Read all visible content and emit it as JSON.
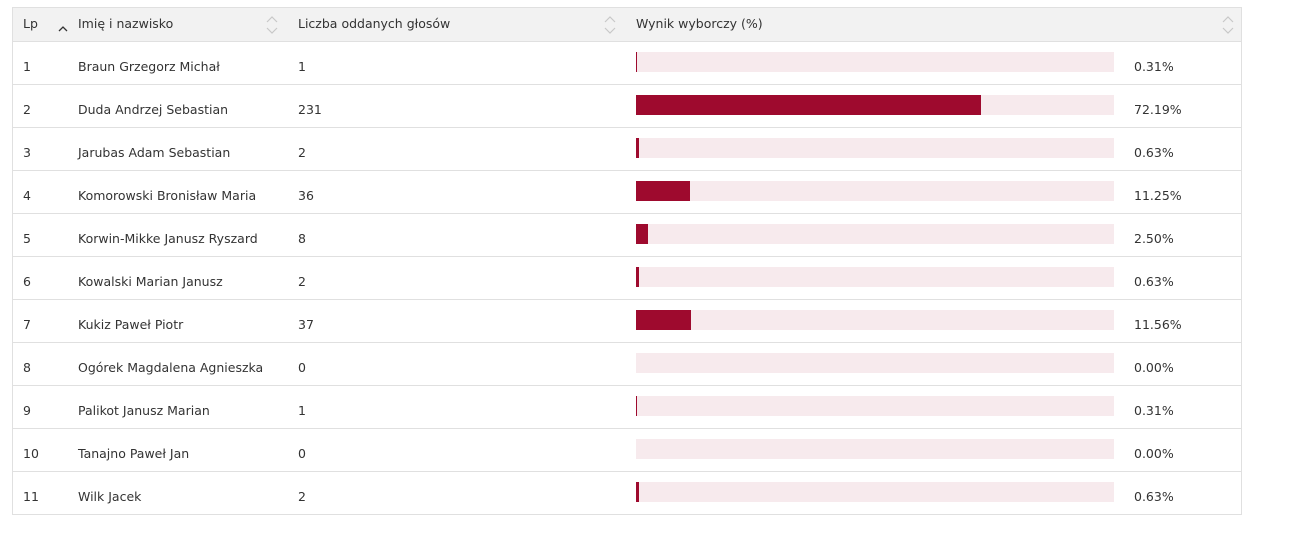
{
  "header": {
    "col_lp": "Lp",
    "col_name": "Imię i nazwisko",
    "col_votes": "Liczba oddanych głosów",
    "col_result": "Wynik wyborczy (%)"
  },
  "colors": {
    "bar": "#9e0a2e",
    "bar_track": "#f7eaed"
  },
  "rows": [
    {
      "lp": "1",
      "name": "Braun Grzegorz Michał",
      "votes": "1",
      "percent": "0.31%",
      "value": 0.31
    },
    {
      "lp": "2",
      "name": "Duda Andrzej Sebastian",
      "votes": "231",
      "percent": "72.19%",
      "value": 72.19
    },
    {
      "lp": "3",
      "name": "Jarubas Adam Sebastian",
      "votes": "2",
      "percent": "0.63%",
      "value": 0.63
    },
    {
      "lp": "4",
      "name": "Komorowski Bronisław Maria",
      "votes": "36",
      "percent": "11.25%",
      "value": 11.25
    },
    {
      "lp": "5",
      "name": "Korwin-Mikke Janusz Ryszard",
      "votes": "8",
      "percent": "2.50%",
      "value": 2.5
    },
    {
      "lp": "6",
      "name": "Kowalski Marian Janusz",
      "votes": "2",
      "percent": "0.63%",
      "value": 0.63
    },
    {
      "lp": "7",
      "name": "Kukiz Paweł Piotr",
      "votes": "37",
      "percent": "11.56%",
      "value": 11.56
    },
    {
      "lp": "8",
      "name": "Ogórek Magdalena Agnieszka",
      "votes": "0",
      "percent": "0.00%",
      "value": 0.0
    },
    {
      "lp": "9",
      "name": "Palikot Janusz Marian",
      "votes": "1",
      "percent": "0.31%",
      "value": 0.31
    },
    {
      "lp": "10",
      "name": "Tanajno Paweł Jan",
      "votes": "0",
      "percent": "0.00%",
      "value": 0.0
    },
    {
      "lp": "11",
      "name": "Wilk Jacek",
      "votes": "2",
      "percent": "0.63%",
      "value": 0.63
    }
  ]
}
